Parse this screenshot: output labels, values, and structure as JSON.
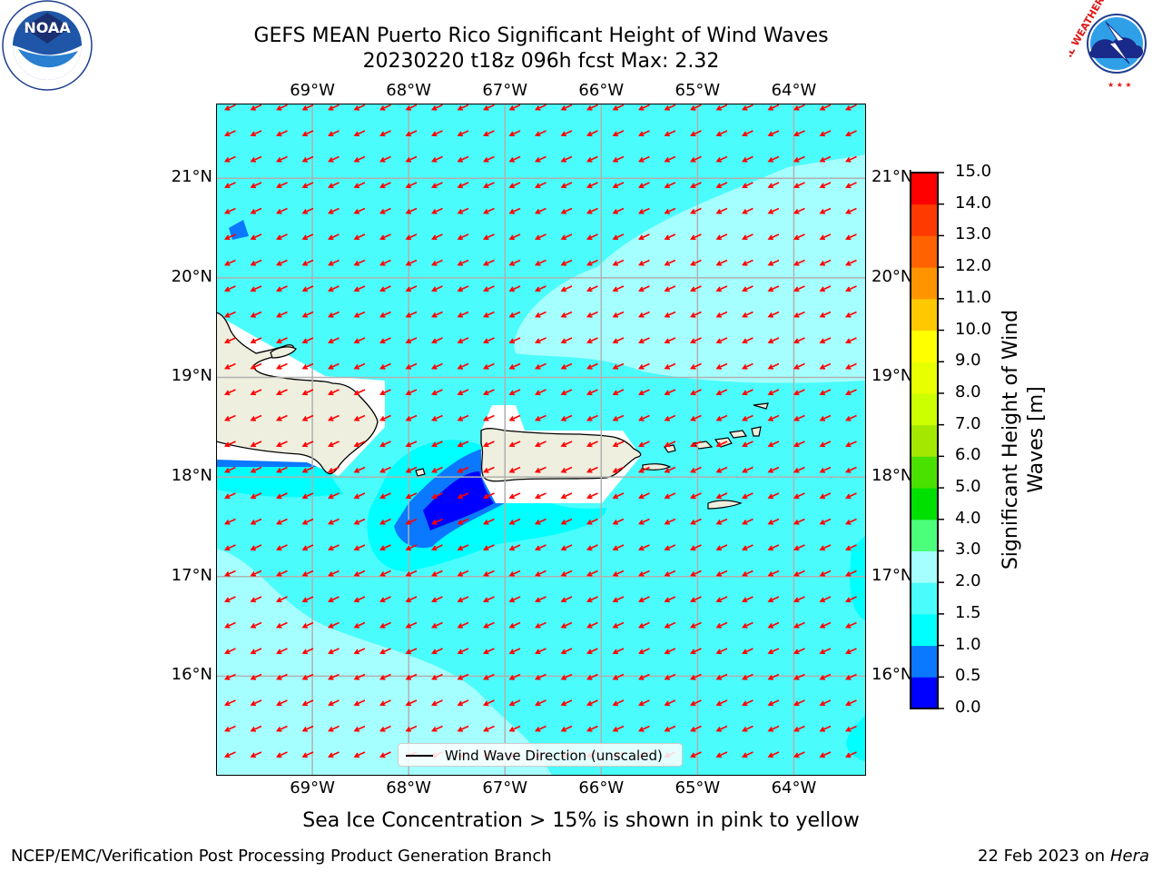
{
  "title": {
    "line1": "GEFS MEAN Puerto Rico Significant Height of Wind Waves",
    "line2": "20230220 t18z 096h fcst   Max: 2.32"
  },
  "map": {
    "lon_range": [
      -70.0,
      -63.25
    ],
    "lat_range": [
      15.0,
      21.75
    ],
    "lon_ticks": [
      {
        "value": -69,
        "label": "69°W"
      },
      {
        "value": -68,
        "label": "68°W"
      },
      {
        "value": -67,
        "label": "67°W"
      },
      {
        "value": -66,
        "label": "66°W"
      },
      {
        "value": -65,
        "label": "65°W"
      },
      {
        "value": -64,
        "label": "64°W"
      }
    ],
    "lat_ticks": [
      {
        "value": 21,
        "label": "21°N"
      },
      {
        "value": 20,
        "label": "20°N"
      },
      {
        "value": 19,
        "label": "19°N"
      },
      {
        "value": 18,
        "label": "18°N"
      },
      {
        "value": 17,
        "label": "17°N"
      },
      {
        "value": 16,
        "label": "16°N"
      }
    ],
    "grid": true,
    "arrow_color": "#ff0000",
    "land_color": "#efefdf",
    "legend_label": "Wind Wave Direction (unscaled)",
    "legend_position": "lower-center"
  },
  "colorbar": {
    "title_line1": "Significant Height of Wind",
    "title_line2": "Waves [m]",
    "levels": [
      "0.0",
      "0.5",
      "1.0",
      "1.5",
      "2.0",
      "3.0",
      "4.0",
      "5.0",
      "6.0",
      "7.0",
      "8.0",
      "9.0",
      "10.0",
      "11.0",
      "12.0",
      "13.0",
      "14.0",
      "15.0"
    ],
    "colors": [
      "#0000ff",
      "#0a78ff",
      "#00ffff",
      "#4bfcfc",
      "#a6ffff",
      "#4cff7a",
      "#00e000",
      "#4ae000",
      "#a4e800",
      "#ccff00",
      "#e8ff00",
      "#ffff00",
      "#ffc800",
      "#ff9400",
      "#ff6200",
      "#ff3a00",
      "#ff0000"
    ]
  },
  "footnote": "Sea Ice Concentration > 15% is shown in pink to yellow",
  "footer": {
    "credit": "NCEP/EMC/Verification Post Processing Product Generation Branch",
    "date": "22 Feb 2023 on",
    "host": "Hera"
  },
  "logos": {
    "noaa_text": "NOAA",
    "nws_text": "NATIONAL WEATHER SERVICE"
  }
}
